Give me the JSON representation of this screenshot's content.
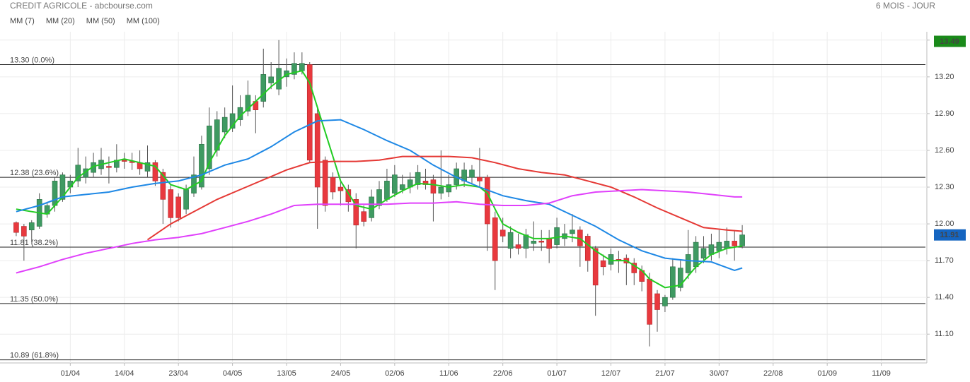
{
  "chart_data": {
    "type": "candlestick",
    "title": "CREDIT AGRICOLE - abcbourse.com",
    "period": "6 MOIS - JOUR",
    "xlim": [
      -2.1,
      117.9
    ],
    "xticks": [
      {
        "value": 7,
        "label": "01/04"
      },
      {
        "value": 14,
        "label": "14/04"
      },
      {
        "value": 21,
        "label": "23/04"
      },
      {
        "value": 28,
        "label": "04/05"
      },
      {
        "value": 35,
        "label": "13/05"
      },
      {
        "value": 42,
        "label": "24/05"
      },
      {
        "value": 49,
        "label": "02/06"
      },
      {
        "value": 56,
        "label": "11/06"
      },
      {
        "value": 63,
        "label": "22/06"
      },
      {
        "value": 70,
        "label": "01/07"
      },
      {
        "value": 77,
        "label": "12/07"
      },
      {
        "value": 84,
        "label": "21/07"
      },
      {
        "value": 91,
        "label": "30/07"
      },
      {
        "value": 98,
        "label": "22/08"
      },
      {
        "value": 105,
        "label": "01/09"
      },
      {
        "value": 112,
        "label": "11/09"
      }
    ],
    "ylim": [
      10.865,
      13.568
    ],
    "yticks": [
      {
        "value": 13.5,
        "label": "13.50"
      },
      {
        "value": 13.2,
        "label": "13.20"
      },
      {
        "value": 12.9,
        "label": "12.90"
      },
      {
        "value": 12.6,
        "label": "12.60"
      },
      {
        "value": 12.3,
        "label": "12.30"
      },
      {
        "value": 12.0,
        "label": "12.00"
      },
      {
        "value": 11.7,
        "label": "11.70"
      },
      {
        "value": 11.4,
        "label": "11.40"
      },
      {
        "value": 11.1,
        "label": "11.10"
      }
    ],
    "grid": true,
    "up_color": "#3f9a62",
    "down_color": "#e8393e",
    "candles": {
      "x": [
        0,
        1,
        2,
        3,
        4,
        5,
        6,
        7,
        8,
        9,
        10,
        11,
        12,
        13,
        14,
        15,
        16,
        17,
        18,
        19,
        20,
        21,
        22,
        23,
        24,
        25,
        26,
        27,
        28,
        29,
        30,
        31,
        32,
        33,
        34,
        35,
        36,
        37,
        38,
        39,
        40,
        41,
        42,
        43,
        44,
        45,
        46,
        47,
        48,
        49,
        50,
        51,
        52,
        53,
        54,
        55,
        56,
        57,
        58,
        59,
        60,
        61,
        62,
        63,
        64,
        65,
        66,
        67,
        68,
        69,
        70,
        71,
        72,
        73,
        74,
        75,
        76,
        77,
        78,
        79,
        80,
        81,
        82,
        83,
        84,
        85,
        86,
        87,
        88,
        89,
        90,
        91,
        92,
        93,
        94
      ],
      "open": [
        12.01,
        11.98,
        11.95,
        11.98,
        12.08,
        12.15,
        12.2,
        12.3,
        12.35,
        12.38,
        12.42,
        12.45,
        12.47,
        12.46,
        12.52,
        12.51,
        12.5,
        12.43,
        12.5,
        12.42,
        12.28,
        12.22,
        12.12,
        12.25,
        12.3,
        12.45,
        12.6,
        12.75,
        12.78,
        12.85,
        12.92,
        13.0,
        13.0,
        13.15,
        13.1,
        13.2,
        13.22,
        13.25,
        13.3,
        12.9,
        12.52,
        12.38,
        12.3,
        12.28,
        12.2,
        12.1,
        12.05,
        12.15,
        12.2,
        12.25,
        12.28,
        12.3,
        12.32,
        12.35,
        12.36,
        12.25,
        12.26,
        12.32,
        12.35,
        12.38,
        12.38,
        12.38,
        12.05,
        11.95,
        11.8,
        11.83,
        11.8,
        11.84,
        11.86,
        11.88,
        11.83,
        11.88,
        11.92,
        11.95,
        11.9,
        11.8,
        11.7,
        11.67,
        11.71,
        11.72,
        11.68,
        11.62,
        11.55,
        11.43,
        11.33,
        11.4,
        11.48,
        11.6,
        11.65,
        11.72,
        11.75,
        11.78,
        11.8,
        11.86,
        11.82
      ],
      "high": [
        12.02,
        12.0,
        12.03,
        12.25,
        12.18,
        12.38,
        12.42,
        12.4,
        12.62,
        12.55,
        12.58,
        12.62,
        12.55,
        12.65,
        12.58,
        12.58,
        12.6,
        12.64,
        12.52,
        12.45,
        12.32,
        12.25,
        12.32,
        12.55,
        12.72,
        12.95,
        12.92,
        12.95,
        13.13,
        13.05,
        13.17,
        13.05,
        13.43,
        13.32,
        13.5,
        13.35,
        13.4,
        13.4,
        13.32,
        12.95,
        12.55,
        12.42,
        12.35,
        12.32,
        12.25,
        12.15,
        12.28,
        12.35,
        12.45,
        12.48,
        12.4,
        12.42,
        12.48,
        12.45,
        12.4,
        12.6,
        12.4,
        12.5,
        12.5,
        12.48,
        12.62,
        12.4,
        12.1,
        12.05,
        11.98,
        11.92,
        11.96,
        12.02,
        11.95,
        11.95,
        12.05,
        12.0,
        12.08,
        11.98,
        11.92,
        11.82,
        11.75,
        11.8,
        11.78,
        11.75,
        11.72,
        11.66,
        11.6,
        11.46,
        11.42,
        11.72,
        11.7,
        11.95,
        11.9,
        11.9,
        11.92,
        11.95,
        11.97,
        11.95,
        11.99
      ],
      "low": [
        11.9,
        11.7,
        11.85,
        11.96,
        12.05,
        12.1,
        12.18,
        12.25,
        12.3,
        12.33,
        12.38,
        12.4,
        12.33,
        12.42,
        12.45,
        12.44,
        12.4,
        12.38,
        12.31,
        12.0,
        11.97,
        12.02,
        12.08,
        12.22,
        12.28,
        12.4,
        12.55,
        12.7,
        12.75,
        12.8,
        12.88,
        12.74,
        12.95,
        13.1,
        13.05,
        13.12,
        13.18,
        13.22,
        12.5,
        11.96,
        12.1,
        12.2,
        12.15,
        12.1,
        11.8,
        11.98,
        12.02,
        12.12,
        12.18,
        12.22,
        12.25,
        12.25,
        12.28,
        12.28,
        12.02,
        12.2,
        12.22,
        12.28,
        12.3,
        12.32,
        12.3,
        11.78,
        11.46,
        11.85,
        11.72,
        11.75,
        11.72,
        11.78,
        11.78,
        11.68,
        11.8,
        11.82,
        11.85,
        11.65,
        11.61,
        11.25,
        11.58,
        11.62,
        11.6,
        11.5,
        11.5,
        11.45,
        11.0,
        11.12,
        11.28,
        11.38,
        11.45,
        11.55,
        11.6,
        11.68,
        11.7,
        11.72,
        11.75,
        11.7,
        11.8
      ],
      "close": [
        11.93,
        11.9,
        12.01,
        12.2,
        12.15,
        12.35,
        12.4,
        12.35,
        12.48,
        12.45,
        12.5,
        12.52,
        12.46,
        12.52,
        12.51,
        12.5,
        12.45,
        12.5,
        12.35,
        12.2,
        12.05,
        12.05,
        12.28,
        12.4,
        12.65,
        12.8,
        12.85,
        12.87,
        12.9,
        12.95,
        13.05,
        12.93,
        13.22,
        13.2,
        13.27,
        13.25,
        13.31,
        13.31,
        12.52,
        12.3,
        12.15,
        12.26,
        12.27,
        12.18,
        11.99,
        12.02,
        12.22,
        12.28,
        12.35,
        12.4,
        12.32,
        12.36,
        12.42,
        12.32,
        12.25,
        12.3,
        12.32,
        12.45,
        12.44,
        12.44,
        12.35,
        12.0,
        11.7,
        11.9,
        11.93,
        11.8,
        11.91,
        11.86,
        11.85,
        11.8,
        11.97,
        11.92,
        11.95,
        11.82,
        11.7,
        11.5,
        11.65,
        11.75,
        11.7,
        11.68,
        11.6,
        11.53,
        11.18,
        11.3,
        11.4,
        11.65,
        11.64,
        11.75,
        11.85,
        11.8,
        11.83,
        11.85,
        11.86,
        11.82,
        11.91
      ]
    },
    "series": [
      {
        "name": "MM (7)",
        "color": "#22cc22",
        "x": [
          0,
          4,
          6,
          8,
          10,
          12,
          14,
          16,
          18,
          20,
          22,
          24,
          25,
          27,
          29,
          31,
          33,
          35,
          37,
          38,
          39,
          41,
          42,
          44,
          46,
          48,
          50,
          52,
          54,
          56,
          58,
          60,
          61,
          62,
          63,
          65,
          67,
          69,
          71,
          73,
          75,
          77,
          79,
          81,
          82,
          84,
          86,
          88,
          90,
          92,
          94
        ],
        "values": [
          12.12,
          12.08,
          12.22,
          12.38,
          12.47,
          12.5,
          12.53,
          12.5,
          12.47,
          12.32,
          12.28,
          12.35,
          12.5,
          12.72,
          12.88,
          13.0,
          13.12,
          13.22,
          13.25,
          13.15,
          12.95,
          12.55,
          12.35,
          12.15,
          12.12,
          12.2,
          12.27,
          12.33,
          12.32,
          12.3,
          12.32,
          12.3,
          12.25,
          12.12,
          12.0,
          11.93,
          11.88,
          11.88,
          11.9,
          11.88,
          11.78,
          11.7,
          11.7,
          11.62,
          11.55,
          11.48,
          11.5,
          11.65,
          11.75,
          11.8,
          11.82
        ]
      },
      {
        "name": "MM (20)",
        "color": "#1e88e5",
        "x": [
          0,
          3,
          6,
          9,
          12,
          15,
          18,
          21,
          24,
          27,
          30,
          33,
          36,
          39,
          42,
          45,
          48,
          51,
          54,
          57,
          60,
          63,
          66,
          69,
          72,
          75,
          78,
          81,
          84,
          87,
          90,
          93,
          94
        ],
        "values": [
          12.1,
          12.15,
          12.22,
          12.24,
          12.26,
          12.3,
          12.33,
          12.35,
          12.4,
          12.48,
          12.53,
          12.63,
          12.75,
          12.84,
          12.85,
          12.77,
          12.68,
          12.6,
          12.48,
          12.38,
          12.3,
          12.23,
          12.19,
          12.16,
          12.07,
          11.98,
          11.87,
          11.78,
          11.72,
          11.7,
          11.69,
          11.62,
          11.64
        ]
      },
      {
        "name": "MM (50)",
        "color": "#e53935",
        "x": [
          17,
          20,
          23,
          26,
          29,
          32,
          35,
          38,
          41,
          44,
          47,
          50,
          53,
          56,
          59,
          62,
          65,
          68,
          71,
          74,
          77,
          80,
          83,
          86,
          89,
          92,
          94
        ],
        "values": [
          11.87,
          12.0,
          12.1,
          12.2,
          12.28,
          12.36,
          12.44,
          12.5,
          12.51,
          12.51,
          12.52,
          12.55,
          12.55,
          12.55,
          12.54,
          12.5,
          12.45,
          12.42,
          12.4,
          12.35,
          12.3,
          12.22,
          12.13,
          12.05,
          11.97,
          11.95,
          11.94
        ]
      },
      {
        "name": "MM (100)",
        "color": "#e040fb",
        "x": [
          0,
          3,
          6,
          9,
          12,
          15,
          18,
          21,
          24,
          27,
          30,
          33,
          36,
          39,
          42,
          45,
          48,
          51,
          54,
          57,
          60,
          63,
          66,
          69,
          72,
          75,
          78,
          81,
          84,
          87,
          90,
          93,
          94
        ],
        "values": [
          11.6,
          11.65,
          11.71,
          11.76,
          11.8,
          11.84,
          11.87,
          11.89,
          11.92,
          11.97,
          12.02,
          12.08,
          12.15,
          12.16,
          12.16,
          12.16,
          12.16,
          12.17,
          12.17,
          12.18,
          12.16,
          12.15,
          12.15,
          12.17,
          12.23,
          12.26,
          12.27,
          12.28,
          12.27,
          12.26,
          12.24,
          12.22,
          12.22
        ]
      }
    ],
    "levels": [
      {
        "value": 13.3,
        "label": "13.30 (0.0%)"
      },
      {
        "value": 12.38,
        "label": "12.38 (23.6%)"
      },
      {
        "value": 11.81,
        "label": "11.81 (38.2%)"
      },
      {
        "value": 11.35,
        "label": "11.35 (50.0%)"
      },
      {
        "value": 10.89,
        "label": "10.89 (61.8%)"
      }
    ],
    "price_labels": [
      {
        "value": 13.49,
        "label": "13.49",
        "color": "#1a8a1a"
      },
      {
        "value": 11.91,
        "label": "11.91",
        "color": "#1565c0"
      }
    ]
  }
}
